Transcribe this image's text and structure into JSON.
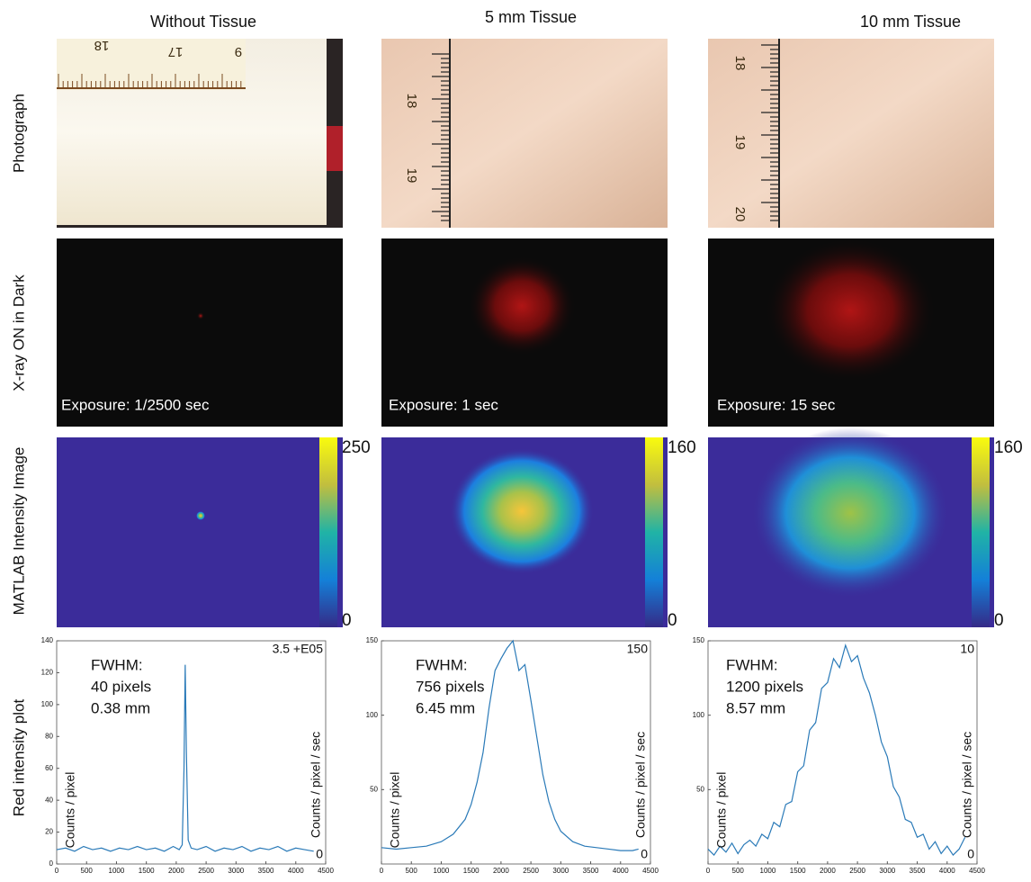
{
  "columns": [
    "Without Tissue",
    "5 mm Tissue",
    "10 mm Tissue"
  ],
  "row_labels": [
    "Photograph",
    "X-ray ON in Dark",
    "MATLAB Intensity Image",
    "Red intensity plot"
  ],
  "photos": [
    {
      "ruler_labels": [
        "18",
        "17",
        "9"
      ]
    },
    {
      "ruler_labels": [
        "18",
        "19"
      ]
    },
    {
      "ruler_labels": [
        "18",
        "19",
        "20"
      ]
    }
  ],
  "exposures": [
    "Exposure: 1/2500 sec",
    "Exposure: 1 sec",
    "Exposure: 15 sec"
  ],
  "colorbars": [
    {
      "max": 250,
      "min": 0
    },
    {
      "max": 160,
      "min": 0
    },
    {
      "max": 160,
      "min": 0
    }
  ],
  "plots": [
    {
      "annotation": [
        "FWHM:",
        "40 pixels",
        "0.38 mm"
      ],
      "y_label": "Counts / pixel",
      "y2_label": "Counts / pixel / sec",
      "y2_top": "3.5 +E05",
      "y2_bottom": "0",
      "xlim": [
        0,
        4500
      ],
      "xticks": [
        0,
        500,
        1000,
        1500,
        2000,
        2500,
        3000,
        3500,
        4000,
        4500
      ],
      "ylim": [
        0,
        140
      ],
      "yticks": [
        0,
        20,
        40,
        60,
        80,
        100,
        120,
        140
      ],
      "color": "#2a7ab8",
      "x": [
        0,
        150,
        300,
        450,
        600,
        750,
        900,
        1050,
        1200,
        1350,
        1500,
        1650,
        1800,
        1950,
        2050,
        2100,
        2130,
        2150,
        2170,
        2200,
        2250,
        2350,
        2500,
        2650,
        2800,
        2950,
        3100,
        3250,
        3400,
        3550,
        3700,
        3850,
        4000,
        4150,
        4300
      ],
      "values": [
        9,
        10,
        8,
        11,
        9,
        10,
        8,
        10,
        9,
        11,
        9,
        10,
        8,
        11,
        9,
        12,
        60,
        125,
        70,
        15,
        10,
        9,
        11,
        8,
        10,
        9,
        11,
        8,
        10,
        9,
        11,
        8,
        10,
        9,
        8
      ]
    },
    {
      "annotation": [
        "FWHM:",
        "756 pixels",
        "6.45 mm"
      ],
      "y_label": "Counts / pixel",
      "y2_label": "Counts / pixel / sec",
      "y2_top": "150",
      "y2_bottom": "0",
      "xlim": [
        0,
        4500
      ],
      "xticks": [
        0,
        500,
        1000,
        1500,
        2000,
        2500,
        3000,
        3500,
        4000,
        4500
      ],
      "ylim": [
        0,
        150
      ],
      "yticks": [
        50,
        100,
        150
      ],
      "color": "#2a7ab8",
      "x": [
        0,
        250,
        500,
        750,
        1000,
        1200,
        1400,
        1500,
        1600,
        1700,
        1800,
        1900,
        2000,
        2100,
        2200,
        2300,
        2400,
        2500,
        2600,
        2700,
        2800,
        2900,
        3000,
        3200,
        3400,
        3600,
        3800,
        4000,
        4200,
        4300
      ],
      "values": [
        11,
        10,
        11,
        12,
        15,
        20,
        30,
        40,
        55,
        75,
        105,
        130,
        138,
        145,
        150,
        130,
        134,
        110,
        85,
        60,
        42,
        30,
        22,
        15,
        12,
        11,
        10,
        9,
        9,
        10
      ]
    },
    {
      "annotation": [
        "FWHM:",
        "1200 pixels",
        "8.57 mm"
      ],
      "y_label": "Counts / pixel",
      "y2_label": "Counts / pixel / sec",
      "y2_top": "10",
      "y2_bottom": "0",
      "xlim": [
        0,
        4500
      ],
      "xticks": [
        0,
        500,
        1000,
        1500,
        2000,
        2500,
        3000,
        3500,
        4000,
        4500
      ],
      "ylim": [
        0,
        150
      ],
      "yticks": [
        50,
        100,
        150
      ],
      "color": "#2a7ab8",
      "x": [
        0,
        100,
        200,
        300,
        400,
        500,
        600,
        700,
        800,
        900,
        1000,
        1100,
        1200,
        1300,
        1400,
        1500,
        1600,
        1700,
        1800,
        1900,
        2000,
        2100,
        2200,
        2300,
        2400,
        2500,
        2600,
        2700,
        2800,
        2900,
        3000,
        3100,
        3200,
        3300,
        3400,
        3500,
        3600,
        3700,
        3800,
        3900,
        4000,
        4100,
        4200,
        4300
      ],
      "values": [
        10,
        6,
        12,
        8,
        14,
        7,
        13,
        16,
        12,
        20,
        17,
        28,
        25,
        40,
        42,
        62,
        66,
        90,
        95,
        118,
        122,
        138,
        132,
        147,
        136,
        140,
        125,
        115,
        100,
        82,
        72,
        52,
        45,
        30,
        28,
        18,
        20,
        10,
        15,
        7,
        12,
        6,
        10,
        18
      ]
    }
  ]
}
